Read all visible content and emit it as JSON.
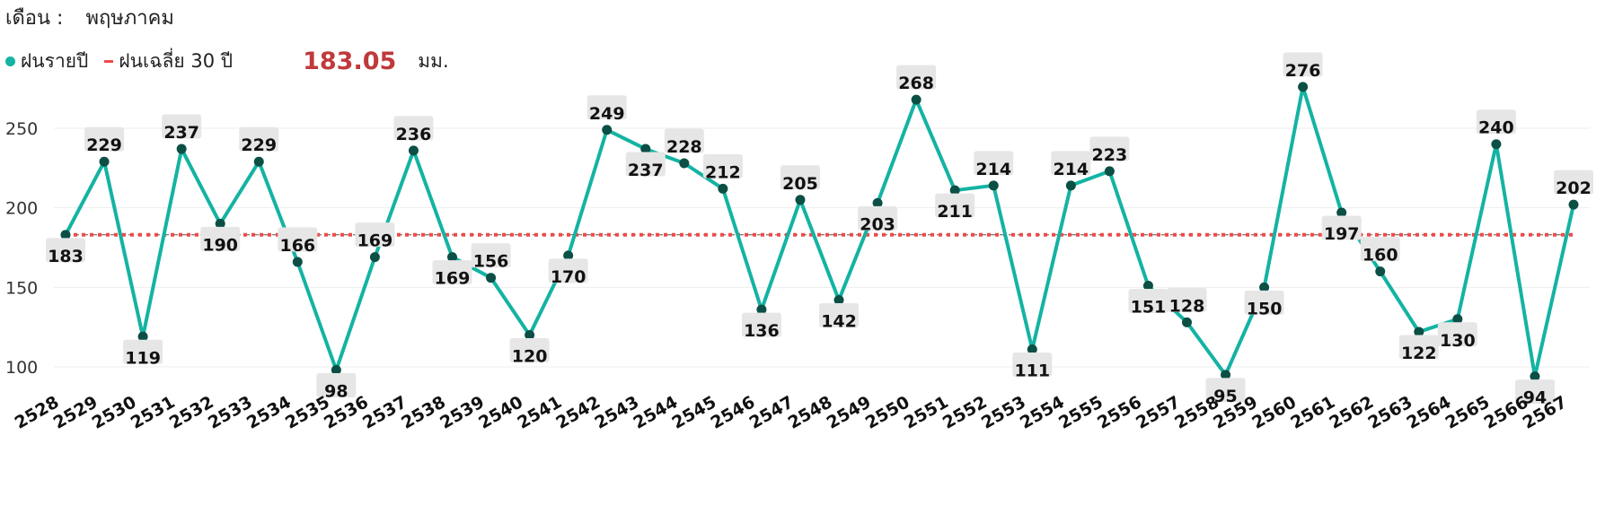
{
  "header": {
    "month_label": "เดือน :",
    "month_value": "พฤษภาคม"
  },
  "legend": {
    "annual_label": "ฝนรายปี",
    "avg_label": "ฝนเฉลี่ย 30 ปี",
    "avg_value": "183.05",
    "unit": "มม."
  },
  "colors": {
    "line": "#14b3a3",
    "point": "#0b4f45",
    "average": "#f04a4a",
    "label_bg": "#e6e6e6",
    "avg_text": "#c0393b"
  },
  "chart_data": {
    "type": "line",
    "x": [
      "2528",
      "2529",
      "2530",
      "2531",
      "2532",
      "2533",
      "2534",
      "2535",
      "2536",
      "2537",
      "2538",
      "2539",
      "2540",
      "2541",
      "2542",
      "2543",
      "2544",
      "2545",
      "2546",
      "2547",
      "2548",
      "2549",
      "2550",
      "2551",
      "2552",
      "2553",
      "2554",
      "2555",
      "2556",
      "2557",
      "2558",
      "2559",
      "2560",
      "2561",
      "2562",
      "2563",
      "2564",
      "2565",
      "2566",
      "2567"
    ],
    "series": [
      {
        "name": "ฝนรายปี",
        "values": [
          183,
          229,
          119,
          237,
          190,
          229,
          166,
          98,
          169,
          236,
          169,
          156,
          120,
          170,
          249,
          237,
          228,
          212,
          136,
          205,
          142,
          203,
          268,
          211,
          214,
          111,
          214,
          223,
          151,
          128,
          95,
          150,
          276,
          197,
          160,
          122,
          130,
          240,
          94,
          202
        ]
      }
    ],
    "reference_line": {
      "name": "ฝนเฉลี่ย 30 ปี",
      "value": 183.05
    },
    "yticks": [
      100,
      150,
      200,
      250
    ],
    "ylim": [
      90,
      280
    ],
    "grid": true,
    "legend_position": "top-left"
  }
}
